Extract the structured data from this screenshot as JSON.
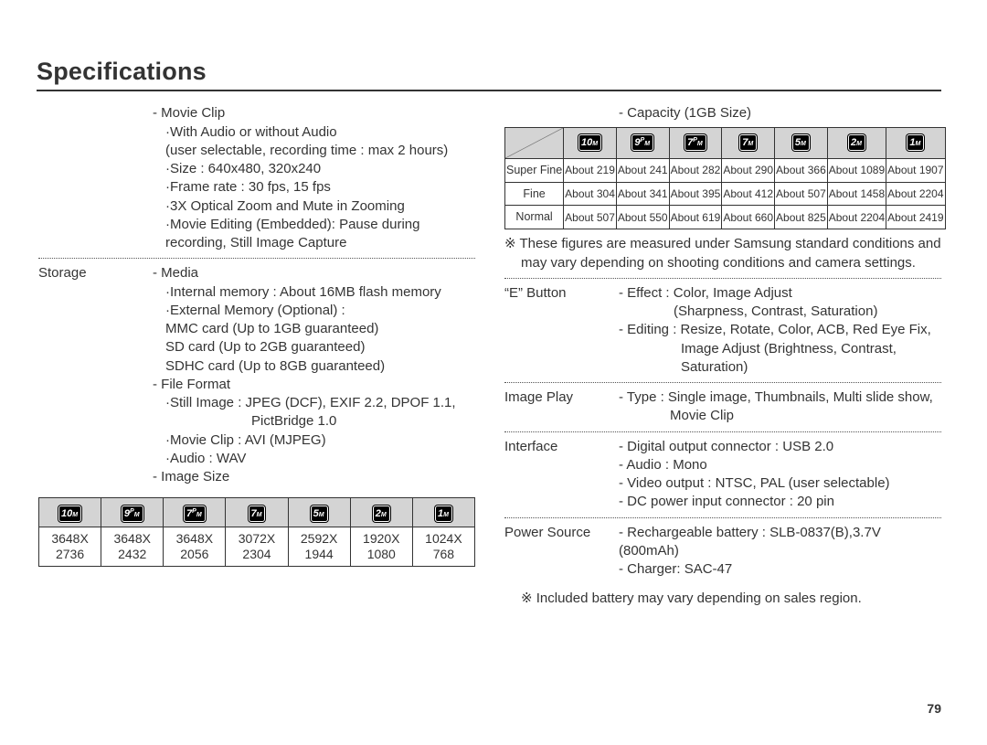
{
  "page": {
    "title": "Specifications",
    "number": "79"
  },
  "mp_icons": [
    {
      "n": "10",
      "sup": "",
      "m": "M"
    },
    {
      "n": "9",
      "sup": "P",
      "m": "M"
    },
    {
      "n": "7",
      "sup": "P",
      "m": "M"
    },
    {
      "n": "7",
      "sup": "",
      "m": "M"
    },
    {
      "n": "5",
      "sup": "",
      "m": "M"
    },
    {
      "n": "2",
      "sup": "",
      "m": "M"
    },
    {
      "n": "1",
      "sup": "",
      "m": "M"
    }
  ],
  "left": {
    "movie": {
      "header": "- Movie Clip",
      "audio": "·With Audio or without Audio",
      "audio_note": "(user selectable, recording time : max 2 hours)",
      "size": "·Size : 640x480, 320x240",
      "fps": "·Frame rate : 30 fps, 15 fps",
      "zoom": "·3X Optical Zoom and Mute in Zooming",
      "edit": "·Movie Editing (Embedded): Pause during",
      "edit2": " recording, Still Image Capture"
    },
    "storage_label": "Storage",
    "media": {
      "header": "- Media",
      "int": "·Internal memory : About 16MB flash memory",
      "ext": "·External Memory (Optional) :",
      "mmc": " MMC card (Up to 1GB guaranteed)",
      "sd": " SD card (Up to 2GB guaranteed)",
      "sdhc": " SDHC card (Up to 8GB guaranteed)"
    },
    "file": {
      "header": "- File Format",
      "still": "·Still Image : JPEG (DCF), EXIF 2.2, DPOF 1.1,",
      "pict": "PictBridge 1.0",
      "movie": "·Movie Clip : AVI (MJPEG)",
      "audio": "·Audio : WAV"
    },
    "imgsize": {
      "header": "- Image Size",
      "rows": [
        [
          "3648X",
          "3648X",
          "3648X",
          "3072X",
          "2592X",
          "1920X",
          "1024X"
        ],
        [
          "2736",
          "2432",
          "2056",
          "2304",
          "1944",
          "1080",
          "768"
        ]
      ]
    }
  },
  "right": {
    "capacity": {
      "header": "- Capacity (1GB Size)",
      "rows": [
        {
          "label": "Super Fine",
          "cells": [
            "About 219",
            "About 241",
            "About 282",
            "About 290",
            "About 366",
            "About 1089",
            "About 1907"
          ]
        },
        {
          "label": "Fine",
          "cells": [
            "About 304",
            "About 341",
            "About 395",
            "About 412",
            "About 507",
            "About 1458",
            "About 2204"
          ]
        },
        {
          "label": "Normal",
          "cells": [
            "About 507",
            "About 550",
            "About 619",
            "About 660",
            "About 825",
            "About 2204",
            "About 2419"
          ]
        }
      ],
      "note1": "※ These figures are measured under Samsung standard conditions and",
      "note2": "may vary depending on shooting conditions and camera settings."
    },
    "ebutton_label": "“E” Button",
    "ebutton": {
      "l1": "- Effect : Color, Image Adjust",
      "l2": "(Sharpness, Contrast, Saturation)",
      "l3": "- Editing : Resize, Rotate, Color, ACB, Red Eye Fix,",
      "l4": "Image Adjust (Brightness, Contrast,",
      "l5": "Saturation)"
    },
    "imageplay_label": "Image Play",
    "imageplay": {
      "l1": "- Type : Single image, Thumbnails, Multi slide show,",
      "l2": "Movie Clip"
    },
    "interface_label": "Interface",
    "interface": {
      "l1": "- Digital output connector : USB 2.0",
      "l2": "- Audio : Mono",
      "l3": "- Video output : NTSC, PAL (user selectable)",
      "l4": "- DC power input connector : 20 pin"
    },
    "power_label": "Power Source",
    "power": {
      "l1": "- Rechargeable battery : SLB-0837(B),3.7V (800mAh)",
      "l2": "- Charger: SAC-47",
      "note": "※ Included battery may vary depending on sales region."
    }
  }
}
